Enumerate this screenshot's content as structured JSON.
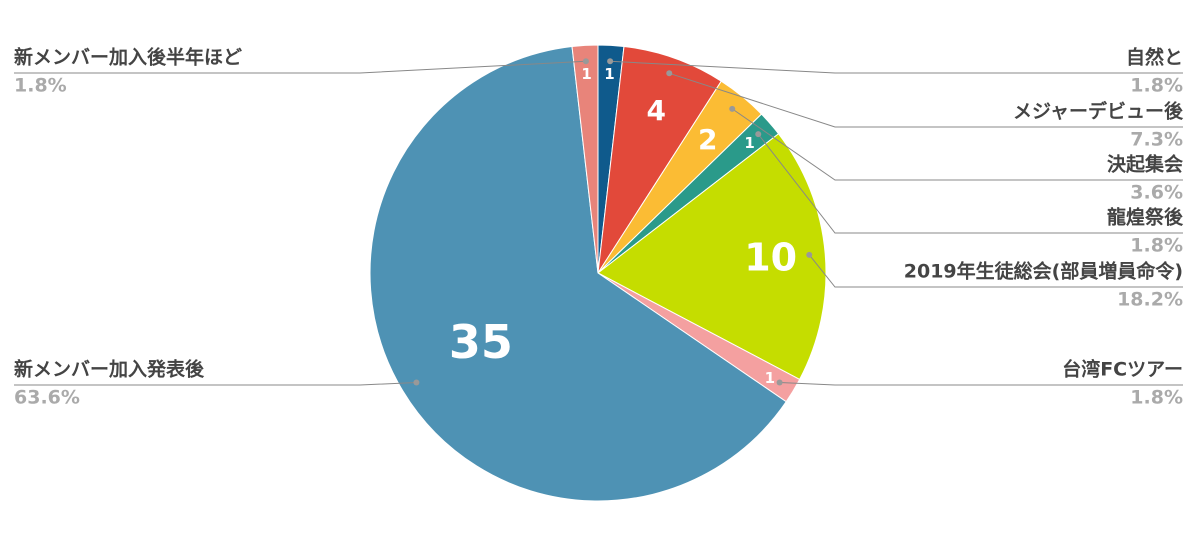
{
  "chart_data": {
    "type": "pie",
    "categories": [
      "自然と",
      "メジャーデビュー後",
      "決起集会",
      "龍煌祭後",
      "2019年生徒総会(部員増員命令)",
      "台湾FCツアー",
      "新メンバー加入発表後",
      "新メンバー加入後半年ほど"
    ],
    "values": [
      1,
      4,
      2,
      1,
      10,
      1,
      35,
      1
    ],
    "percent_labels": [
      "1.8%",
      "7.3%",
      "3.6%",
      "1.8%",
      "18.2%",
      "1.8%",
      "63.6%",
      "1.8%"
    ],
    "colors": [
      "#0f5a8c",
      "#e2493a",
      "#fbbc34",
      "#2a9a8a",
      "#c5dd00",
      "#f4a0a0",
      "#4e92b4",
      "#e8847a"
    ]
  }
}
